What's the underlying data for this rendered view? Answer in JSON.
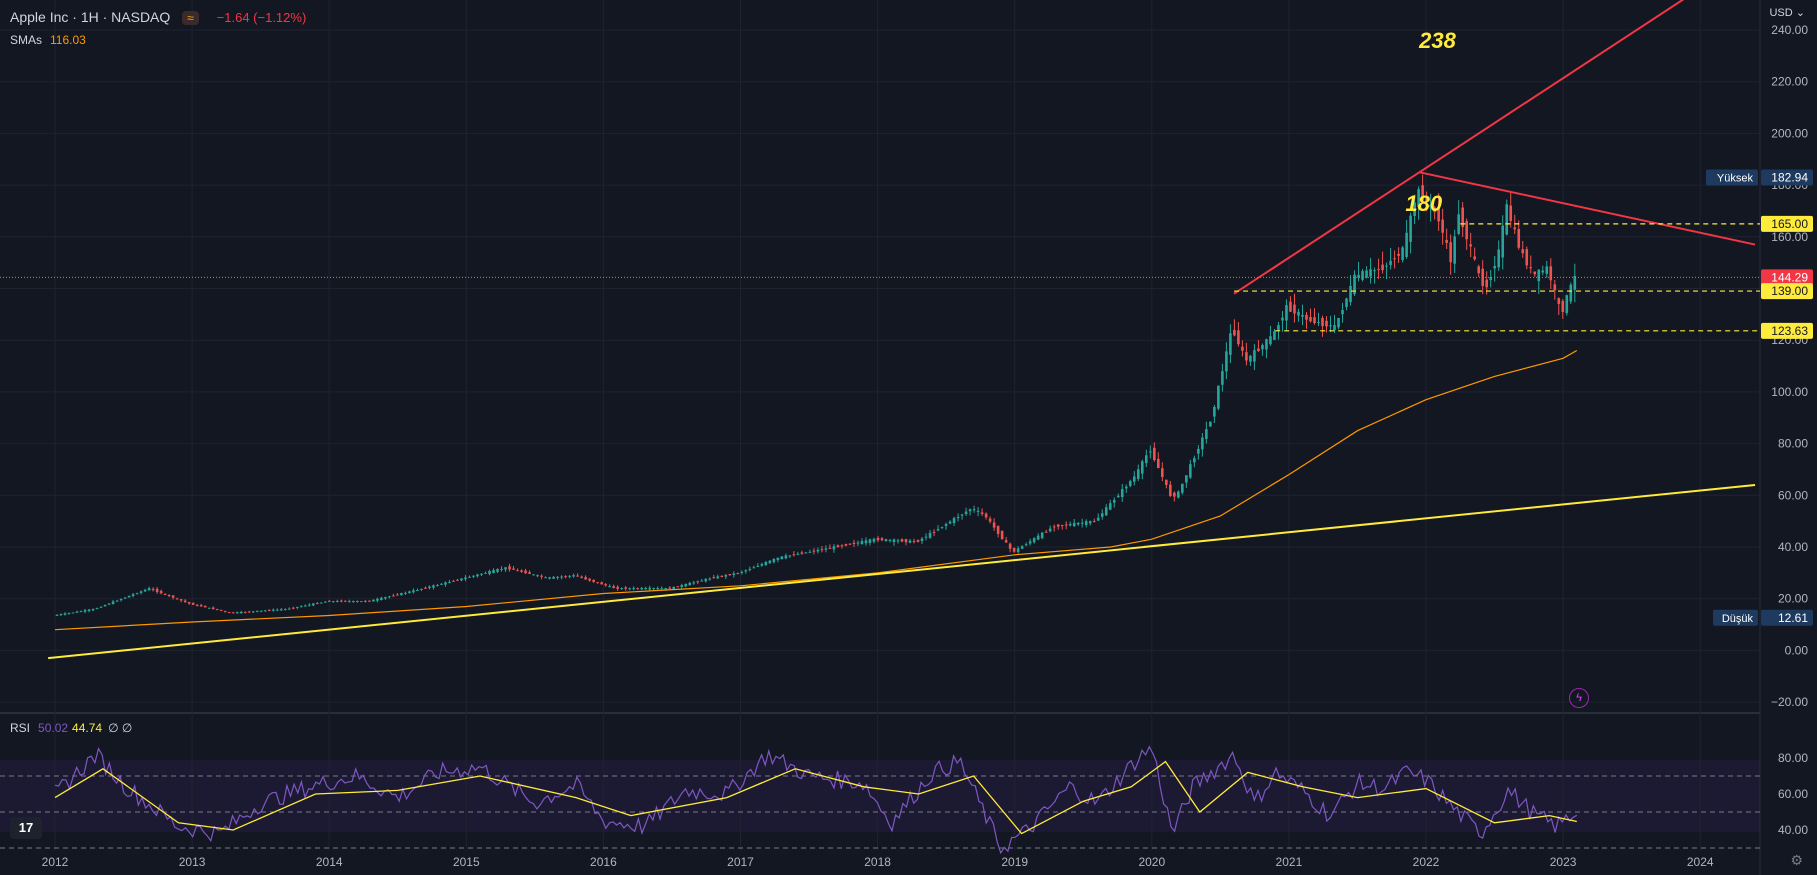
{
  "header": {
    "title": "Apple Inc · 1H · NASDAQ",
    "change": "−1.64 (−1.12%)",
    "badge_icon": "≈",
    "sma_label": "SMAs",
    "sma_value": "116.03",
    "currency": "USD"
  },
  "rsi": {
    "label": "RSI",
    "value1": "50.02",
    "value2": "44.74",
    "extra": "∅ ∅"
  },
  "icons": {
    "logo": "tradingview-logo-icon",
    "settings": "gear-icon",
    "alert": "lightning-icon"
  },
  "chart_data": {
    "type": "candlestick",
    "price_axis": {
      "ticks": [
        "240.00",
        "220.00",
        "200.00",
        "180.00",
        "160.00",
        "140.00",
        "120.00",
        "100.00",
        "80.00",
        "60.00",
        "40.00",
        "20.00",
        "0.00",
        "−20.00"
      ],
      "ylim": [
        -20,
        240
      ]
    },
    "time_axis": {
      "ticks": [
        "2012",
        "2013",
        "2014",
        "2015",
        "2016",
        "2017",
        "2018",
        "2019",
        "2020",
        "2021",
        "2022",
        "2023",
        "2024"
      ]
    },
    "price_labels": [
      {
        "text": "Yüksek",
        "value": "182.94",
        "price": 182.94,
        "kind": "high"
      },
      {
        "text": "",
        "value": "165.00",
        "price": 165,
        "kind": "level"
      },
      {
        "text": "",
        "value": "144.29",
        "price": 144.29,
        "kind": "current"
      },
      {
        "text": "",
        "value": "139.00",
        "price": 139,
        "kind": "level"
      },
      {
        "text": "",
        "value": "123.63",
        "price": 123.63,
        "kind": "level"
      },
      {
        "text": "Düşük",
        "value": "12.61",
        "price": 12.61,
        "kind": "low"
      }
    ],
    "annotations": [
      "238",
      "180"
    ],
    "rsi_axis": {
      "ticks": [
        "80.00",
        "60.00",
        "40.00"
      ],
      "bands": [
        70,
        50,
        30
      ]
    },
    "price_path": [
      [
        2012.0,
        13.5
      ],
      [
        2012.3,
        16
      ],
      [
        2012.7,
        24
      ],
      [
        2013.0,
        18
      ],
      [
        2013.3,
        14.5
      ],
      [
        2013.7,
        16
      ],
      [
        2014.0,
        19
      ],
      [
        2014.3,
        19
      ],
      [
        2014.7,
        24
      ],
      [
        2015.0,
        28
      ],
      [
        2015.3,
        32
      ],
      [
        2015.6,
        28
      ],
      [
        2015.8,
        29
      ],
      [
        2016.1,
        24
      ],
      [
        2016.5,
        24
      ],
      [
        2016.8,
        28
      ],
      [
        2017.0,
        30
      ],
      [
        2017.3,
        36
      ],
      [
        2017.7,
        40
      ],
      [
        2018.0,
        43
      ],
      [
        2018.3,
        42
      ],
      [
        2018.7,
        55
      ],
      [
        2018.8,
        52
      ],
      [
        2019.0,
        38
      ],
      [
        2019.3,
        48
      ],
      [
        2019.6,
        50
      ],
      [
        2019.9,
        68
      ],
      [
        2020.0,
        78
      ],
      [
        2020.15,
        60
      ],
      [
        2020.2,
        60
      ],
      [
        2020.45,
        90
      ],
      [
        2020.6,
        125
      ],
      [
        2020.7,
        112
      ],
      [
        2020.9,
        122
      ],
      [
        2021.0,
        133
      ],
      [
        2021.15,
        128
      ],
      [
        2021.35,
        125
      ],
      [
        2021.5,
        145
      ],
      [
        2021.7,
        148
      ],
      [
        2021.85,
        155
      ],
      [
        2021.95,
        178
      ],
      [
        2022.1,
        168
      ],
      [
        2022.2,
        150
      ],
      [
        2022.25,
        170
      ],
      [
        2022.4,
        145
      ],
      [
        2022.45,
        140
      ],
      [
        2022.55,
        155
      ],
      [
        2022.6,
        172
      ],
      [
        2022.7,
        155
      ],
      [
        2022.8,
        145
      ],
      [
        2022.9,
        148
      ],
      [
        2023.0,
        130
      ],
      [
        2023.05,
        138
      ],
      [
        2023.1,
        144.29
      ]
    ],
    "sma_path": [
      [
        2012.0,
        8
      ],
      [
        2013.0,
        11
      ],
      [
        2014.0,
        13.5
      ],
      [
        2015.0,
        17
      ],
      [
        2016.0,
        22
      ],
      [
        2017.0,
        25
      ],
      [
        2018.0,
        30
      ],
      [
        2019.0,
        37
      ],
      [
        2019.7,
        40
      ],
      [
        2020.0,
        43
      ],
      [
        2020.5,
        52
      ],
      [
        2021.0,
        68
      ],
      [
        2021.5,
        85
      ],
      [
        2022.0,
        97
      ],
      [
        2022.5,
        106
      ],
      [
        2023.0,
        113
      ],
      [
        2023.1,
        116.03
      ]
    ],
    "rsi_path": [
      [
        2012.0,
        60
      ],
      [
        2012.3,
        82
      ],
      [
        2012.5,
        65
      ],
      [
        2012.9,
        42
      ],
      [
        2013.2,
        38
      ],
      [
        2013.5,
        55
      ],
      [
        2013.9,
        65
      ],
      [
        2014.2,
        70
      ],
      [
        2014.5,
        58
      ],
      [
        2014.8,
        72
      ],
      [
        2015.1,
        75
      ],
      [
        2015.5,
        55
      ],
      [
        2015.8,
        65
      ],
      [
        2016.0,
        45
      ],
      [
        2016.3,
        42
      ],
      [
        2016.6,
        62
      ],
      [
        2016.9,
        60
      ],
      [
        2017.2,
        82
      ],
      [
        2017.5,
        70
      ],
      [
        2017.9,
        66
      ],
      [
        2018.1,
        44
      ],
      [
        2018.4,
        72
      ],
      [
        2018.6,
        78
      ],
      [
        2018.9,
        30
      ],
      [
        2019.1,
        40
      ],
      [
        2019.4,
        64
      ],
      [
        2019.6,
        55
      ],
      [
        2019.9,
        80
      ],
      [
        2020.0,
        86
      ],
      [
        2020.15,
        38
      ],
      [
        2020.3,
        64
      ],
      [
        2020.6,
        82
      ],
      [
        2020.75,
        55
      ],
      [
        2020.9,
        72
      ],
      [
        2021.1,
        62
      ],
      [
        2021.3,
        48
      ],
      [
        2021.5,
        66
      ],
      [
        2021.7,
        63
      ],
      [
        2021.85,
        72
      ],
      [
        2022.0,
        68
      ],
      [
        2022.2,
        52
      ],
      [
        2022.4,
        38
      ],
      [
        2022.6,
        62
      ],
      [
        2022.8,
        48
      ],
      [
        2022.95,
        42
      ],
      [
        2023.1,
        50.02
      ]
    ],
    "rsi_sma_path": [
      [
        2012.0,
        58
      ],
      [
        2012.35,
        74
      ],
      [
        2012.9,
        44
      ],
      [
        2013.3,
        40
      ],
      [
        2013.9,
        60
      ],
      [
        2014.5,
        62
      ],
      [
        2015.1,
        70
      ],
      [
        2015.8,
        58
      ],
      [
        2016.2,
        48
      ],
      [
        2016.9,
        58
      ],
      [
        2017.4,
        74
      ],
      [
        2017.9,
        64
      ],
      [
        2018.3,
        60
      ],
      [
        2018.7,
        70
      ],
      [
        2019.05,
        38
      ],
      [
        2019.5,
        56
      ],
      [
        2019.85,
        64
      ],
      [
        2020.1,
        78
      ],
      [
        2020.35,
        50
      ],
      [
        2020.7,
        72
      ],
      [
        2021.1,
        64
      ],
      [
        2021.5,
        58
      ],
      [
        2022.0,
        63
      ],
      [
        2022.5,
        44
      ],
      [
        2022.9,
        48
      ],
      [
        2023.1,
        44.74
      ]
    ],
    "lines": [
      {
        "name": "",
        "color": "#f23645",
        "from": [
          2020.6,
          138
        ],
        "to": [
          2024.4,
          270
        ]
      },
      {
        "name": "",
        "color": "#f23645",
        "from": [
          2021.95,
          185
        ],
        "to": [
          2024.4,
          157
        ]
      },
      {
        "name": "",
        "color": "#ffeb3b",
        "from": [
          2011.95,
          -3
        ],
        "to": [
          2024.4,
          64
        ]
      }
    ],
    "dashed_levels": [
      {
        "price": 165,
        "from": 2022.25
      },
      {
        "price": 139,
        "from": 2020.6
      },
      {
        "price": 123.63,
        "from": 2020.9
      }
    ]
  }
}
